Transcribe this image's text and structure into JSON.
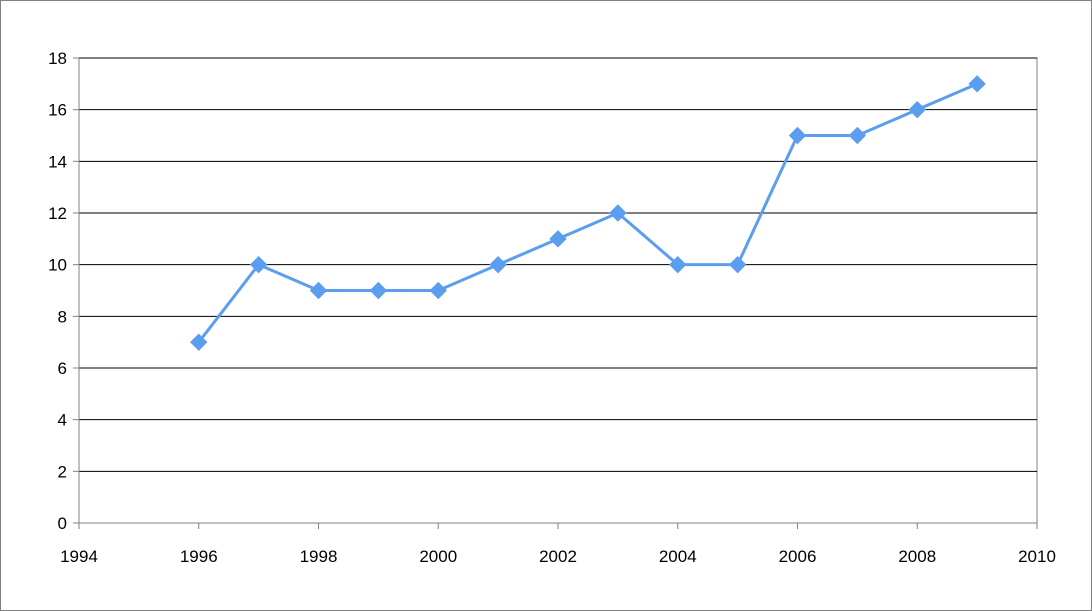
{
  "chart_data": {
    "type": "scatter",
    "title": "",
    "xlabel": "",
    "ylabel": "",
    "xlim": [
      1994,
      2010
    ],
    "ylim": [
      0,
      18
    ],
    "x_ticks": [
      1994,
      1996,
      1998,
      2000,
      2002,
      2004,
      2006,
      2008,
      2010
    ],
    "y_ticks": [
      0,
      2,
      4,
      6,
      8,
      10,
      12,
      14,
      16,
      18
    ],
    "x_tick_labels": [
      "1994",
      "1996",
      "1998",
      "2000",
      "2002",
      "2004",
      "2006",
      "2008",
      "2010"
    ],
    "y_tick_labels": [
      "0",
      "2",
      "4",
      "6",
      "8",
      "10",
      "12",
      "14",
      "16",
      "18"
    ],
    "grid": {
      "horizontal": true,
      "vertical": false
    },
    "legend": "none",
    "marker": "diamond",
    "line_style": "straight lines with markers",
    "series": [
      {
        "color": "#5B9EF0",
        "x": [
          1996,
          1997,
          1998,
          1999,
          2000,
          2001,
          2002,
          2003,
          2004,
          2005,
          2006,
          2007,
          2008,
          2009
        ],
        "y": [
          7,
          10,
          9,
          9,
          9,
          10,
          11,
          12,
          10,
          10,
          15,
          15,
          16,
          17
        ]
      }
    ]
  }
}
